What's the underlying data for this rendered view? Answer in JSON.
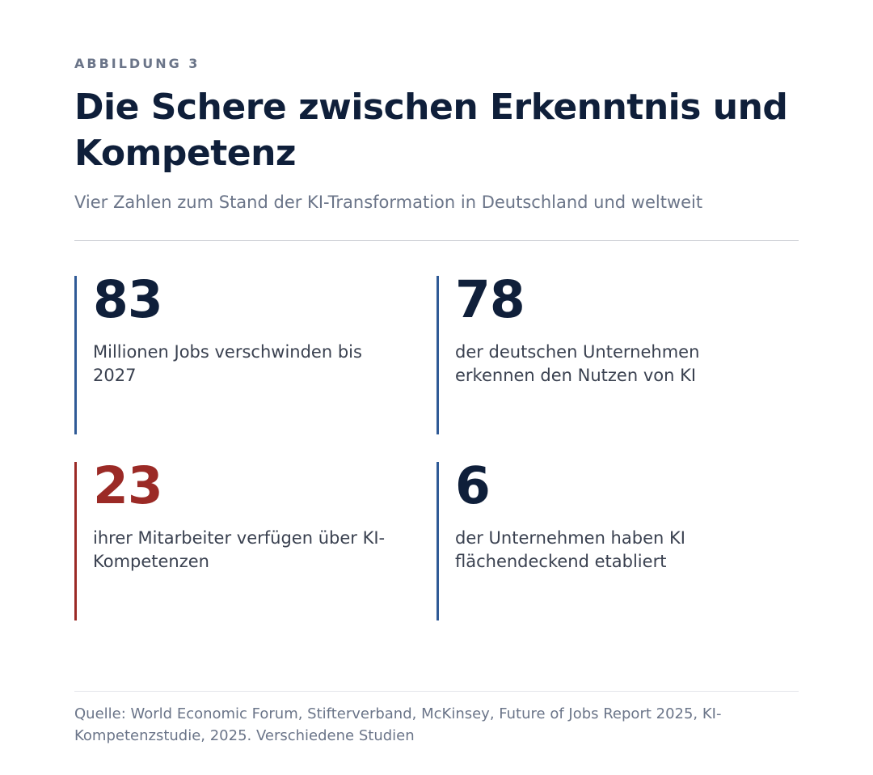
{
  "header": {
    "eyebrow": "ABBILDUNG 3",
    "title": "Die Schere zwischen Erkenntnis und Kompetenz",
    "subtitle": "Vier Zahlen zum Stand der KI-Transformation in Deutschland und weltweit"
  },
  "stats": [
    {
      "value": "83",
      "description": "Millionen Jobs verschwinden bis 2027"
    },
    {
      "value": "78",
      "description": "der deutschen Unternehmen erkennen den Nutzen von KI"
    },
    {
      "value": "23",
      "description": "ihrer Mitarbeiter verfügen über KI-Kompetenzen"
    },
    {
      "value": "6",
      "description": "der Unternehmen haben KI flächendeckend etabliert"
    }
  ],
  "footer": {
    "source": "Quelle: World Economic Forum, Stifterverband, McKinsey, Future of Jobs Report 2025, KI-Kompetenzstudie, 2025. Verschiedene Studien"
  },
  "colors": {
    "primary_text": "#0f1f3a",
    "muted_text": "#6b7589",
    "accent_blue": "#2f5a96",
    "accent_red": "#9b2a26"
  }
}
